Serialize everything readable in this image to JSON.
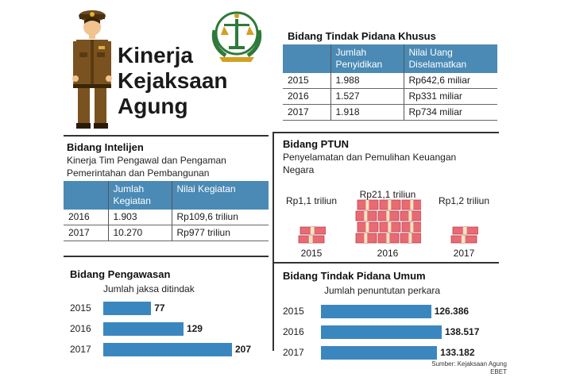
{
  "header": {
    "title_lines": [
      "Kinerja",
      "Kejaksaan",
      "Agung"
    ],
    "mascot_icon": "prosecutor-mascot-icon",
    "emblem_icon": "kejaksaan-emblem-icon"
  },
  "colors": {
    "accent": "#4a8ab5",
    "bar": "#3a87c0",
    "money": "#e86a72"
  },
  "chart_data": [
    {
      "type": "table",
      "title": "Bidang Tindak Pidana Khusus",
      "columns": [
        "",
        "Jumlah Penyidikan",
        "Nilai Uang Diselamatkan"
      ],
      "rows": [
        [
          "2015",
          "1.988",
          "Rp642,6 miliar"
        ],
        [
          "2016",
          "1.527",
          "Rp331 miliar"
        ],
        [
          "2017",
          "1.918",
          "Rp734 miliar"
        ]
      ]
    },
    {
      "type": "table",
      "title": "Bidang Intelijen",
      "subtitle": "Kinerja Tim Pengawal dan Pengaman Pemerintahan dan Pembangunan",
      "columns": [
        "",
        "Jumlah Kegiatan",
        "Nilai Kegiatan"
      ],
      "rows": [
        [
          "2016",
          "1.903",
          "Rp109,6 triliun"
        ],
        [
          "2017",
          "10.270",
          "Rp977 triliun"
        ]
      ]
    },
    {
      "type": "bar",
      "title": "Bidang PTUN",
      "subtitle": "Penyelamatan dan Pemulihan Keuangan Negara",
      "categories": [
        "2015",
        "2016",
        "2017"
      ],
      "values": [
        1.1,
        21.1,
        1.2
      ],
      "labels": [
        "Rp1,1 triliun",
        "Rp21,1 triliun",
        "Rp1,2 triliun"
      ]
    },
    {
      "type": "bar",
      "orientation": "horizontal",
      "title": "Bidang Pengawasan",
      "subtitle": "Jumlah jaksa ditindak",
      "categories": [
        "2015",
        "2016",
        "2017"
      ],
      "values": [
        77,
        129,
        207
      ],
      "labels": [
        "77",
        "129",
        "207"
      ]
    },
    {
      "type": "bar",
      "orientation": "horizontal",
      "title": "Bidang Tindak Pidana Umum",
      "subtitle": "Jumlah penuntutan perkara",
      "categories": [
        "2015",
        "2016",
        "2017"
      ],
      "values": [
        126386,
        138517,
        133182
      ],
      "labels": [
        "126.386",
        "138.517",
        "133.182"
      ]
    }
  ],
  "source": [
    "Sumber: Kejaksaan Agung",
    "EBET"
  ]
}
